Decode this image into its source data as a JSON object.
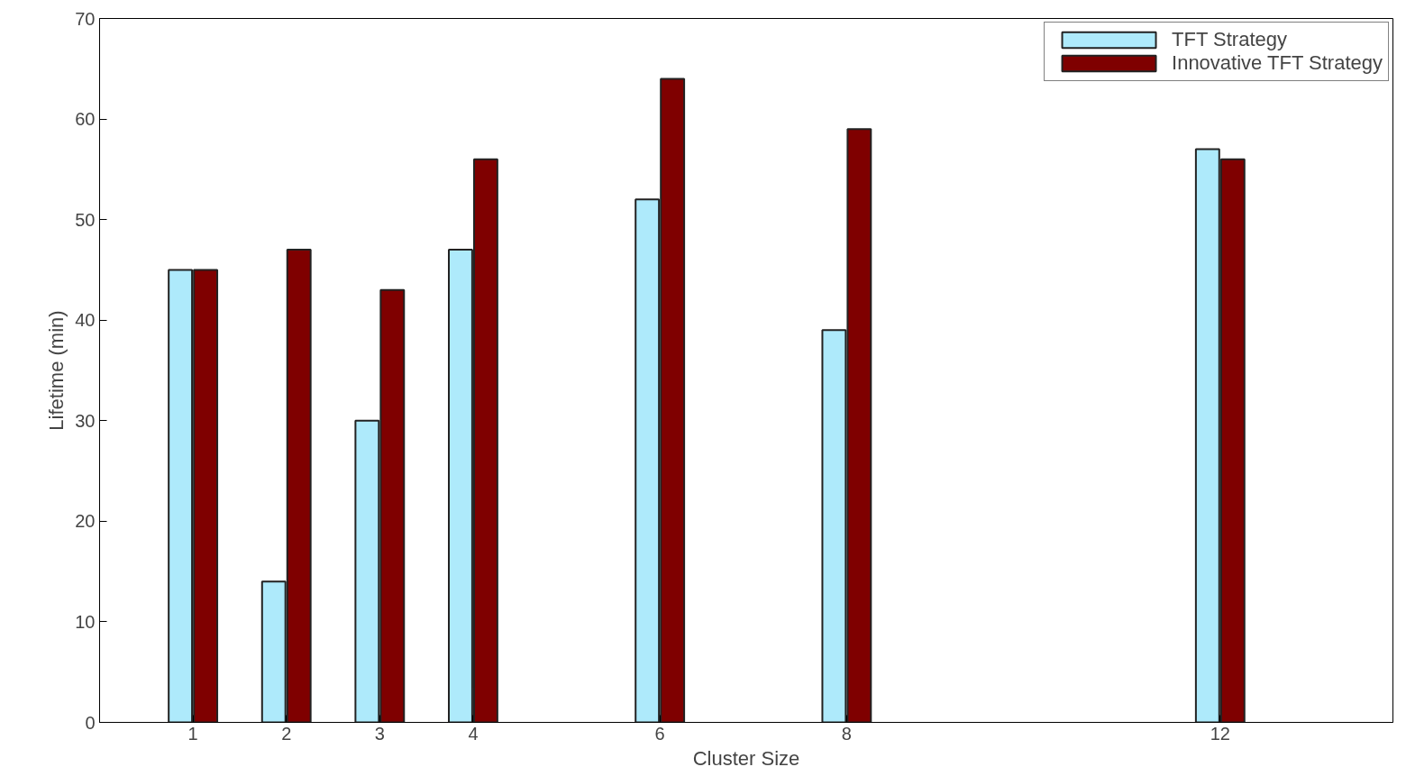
{
  "chart_data": {
    "type": "bar",
    "xlabel": "Cluster Size",
    "ylabel": "Lifetime (min)",
    "x": [
      1,
      2,
      3,
      4,
      6,
      8,
      12
    ],
    "series": [
      {
        "name": "TFT Strategy",
        "color": "#aeeafb",
        "values": [
          45,
          14,
          30,
          47,
          52,
          39,
          57
        ]
      },
      {
        "name": "Innovative TFT Strategy",
        "color": "#7f0000",
        "values": [
          45,
          47,
          43,
          56,
          64,
          59,
          56
        ]
      }
    ],
    "xlim": [
      0,
      13.85
    ],
    "xticks": [
      1,
      2,
      3,
      4,
      6,
      8,
      12
    ],
    "ylim": [
      0,
      70
    ],
    "yticks": [
      0,
      10,
      20,
      30,
      40,
      50,
      60,
      70
    ],
    "grid": false,
    "legend": "top right"
  }
}
